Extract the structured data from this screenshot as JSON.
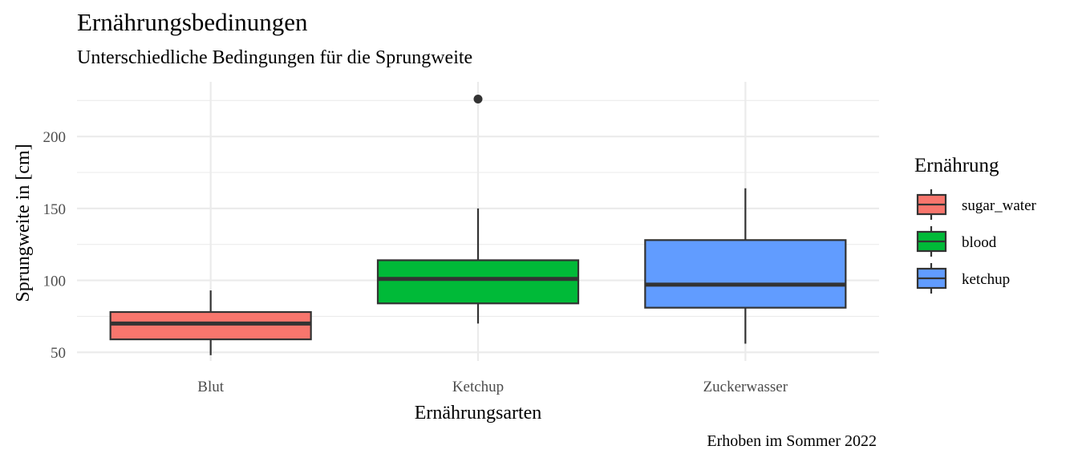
{
  "chart_data": {
    "type": "boxplot",
    "title": "Ernährungsbedinungen",
    "subtitle": "Unterschiedliche Bedingungen für die Sprungweite",
    "caption": "Erhoben im Sommer 2022",
    "xlabel": "Ernährungsarten",
    "ylabel": "Sprungweite in [cm]",
    "categories": [
      "Blut",
      "Ketchup",
      "Zuckerwasser"
    ],
    "ylim": [
      44,
      238
    ],
    "yticks": [
      50,
      100,
      150,
      200
    ],
    "grid": true,
    "legend": {
      "title": "Ernährung",
      "position": "right",
      "labels": [
        "sugar_water",
        "blood",
        "ketchup"
      ]
    },
    "series": [
      {
        "name": "sugar_water",
        "category": "Blut",
        "color": "#F8766D",
        "min": 48,
        "q1": 59,
        "median": 70,
        "q3": 78,
        "max": 93,
        "outliers": []
      },
      {
        "name": "blood",
        "category": "Ketchup",
        "color": "#00BA38",
        "min": 70,
        "q1": 84,
        "median": 101,
        "q3": 114,
        "max": 150,
        "outliers": [
          226
        ]
      },
      {
        "name": "ketchup",
        "category": "Zuckerwasser",
        "color": "#619CFF",
        "min": 56,
        "q1": 81,
        "median": 97,
        "q3": 128,
        "max": 164,
        "outliers": []
      }
    ]
  }
}
